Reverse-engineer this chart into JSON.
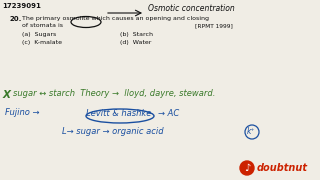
{
  "bg_color": "#f0ede5",
  "question_number": "17239091",
  "q_num": "20.",
  "question_text1": "The primary osmolite which causes an opening and closing",
  "question_text2": "of stomata is",
  "exam_tag": "[RPMT 1999]",
  "opt_a": "(a)  Sugars",
  "opt_b": "(b)  Starch",
  "opt_c": "(c)  K-malate",
  "opt_d": "(d)  Water",
  "arrow_label": "Osmotic concentration",
  "line1_x": "X",
  "line1_rest": "sugar ↔ starch  Theory →  lloyd, dayre, steward.",
  "line2_left": "Fujino →",
  "line2_mid": "Levitt & hashke",
  "line2_right": "→ AC",
  "line3": "L→ sugar → organic acid",
  "circle_label": "k⁺",
  "doubtnut": "doubtnut",
  "black": "#111111",
  "blue": "#1a4fa0",
  "green": "#3a7a2a",
  "red": "#cc2200"
}
